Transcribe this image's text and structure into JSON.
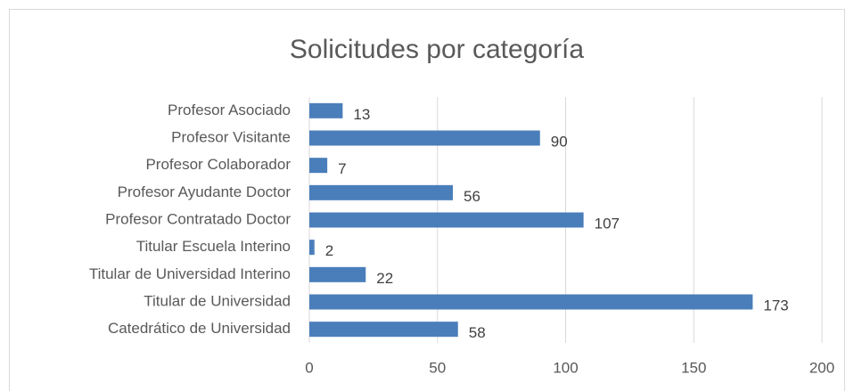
{
  "chart_data": {
    "type": "bar",
    "orientation": "horizontal",
    "title": "Solicitudes por categoría",
    "categories": [
      "Profesor Asociado",
      "Profesor Visitante",
      "Profesor Colaborador",
      "Profesor Ayudante Doctor",
      "Profesor Contratado Doctor",
      "Titular Escuela Interino",
      "Titular de Universidad Interino",
      "Titular de Universidad",
      "Catedrático de Universidad"
    ],
    "values": [
      13,
      90,
      7,
      56,
      107,
      2,
      22,
      173,
      58
    ],
    "color": "#4a7ebb",
    "xlim": [
      0,
      200
    ],
    "xticks": [
      0,
      50,
      100,
      150,
      200
    ],
    "grid": true
  }
}
